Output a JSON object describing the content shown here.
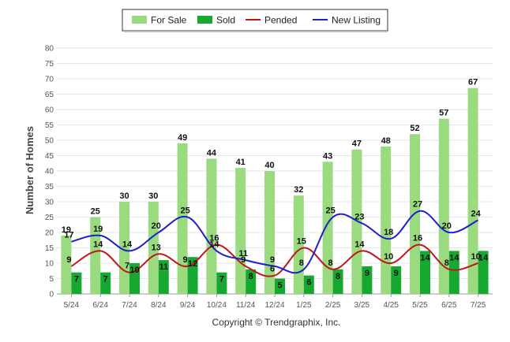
{
  "chart_data": {
    "type": "bar",
    "categories": [
      "5/24",
      "6/24",
      "7/24",
      "8/24",
      "9/24",
      "10/24",
      "11/24",
      "12/24",
      "1/25",
      "2/25",
      "3/25",
      "4/25",
      "5/25",
      "6/25",
      "7/25"
    ],
    "series": [
      {
        "name": "For Sale",
        "kind": "bar",
        "color": "#9adb80",
        "values": [
          19,
          25,
          30,
          30,
          49,
          44,
          41,
          40,
          32,
          43,
          47,
          48,
          52,
          57,
          67
        ]
      },
      {
        "name": "Sold",
        "kind": "bar",
        "color": "#17a832",
        "values": [
          7,
          7,
          10,
          11,
          12,
          7,
          8,
          5,
          6,
          8,
          9,
          9,
          14,
          14,
          14
        ]
      },
      {
        "name": "Pended",
        "kind": "line",
        "color": "#c0161b",
        "values": [
          9,
          14,
          7,
          13,
          9,
          16,
          9,
          6,
          15,
          8,
          14,
          10,
          16,
          8,
          10
        ]
      },
      {
        "name": "New Listing",
        "kind": "line",
        "color": "#1f1fcf",
        "values": [
          17,
          19,
          14,
          20,
          25,
          14,
          11,
          9,
          8,
          25,
          23,
          18,
          27,
          20,
          24
        ]
      }
    ],
    "title": "",
    "xlabel": "",
    "ylabel": "Number of Homes",
    "ylim": [
      0,
      80
    ],
    "yticks": [
      0,
      5,
      10,
      15,
      20,
      25,
      30,
      35,
      40,
      45,
      50,
      55,
      60,
      65,
      70,
      75,
      80
    ],
    "grid": true,
    "legend_position": "top-center"
  },
  "footer": {
    "copyright": "Copyright © Trendgraphix, Inc."
  }
}
